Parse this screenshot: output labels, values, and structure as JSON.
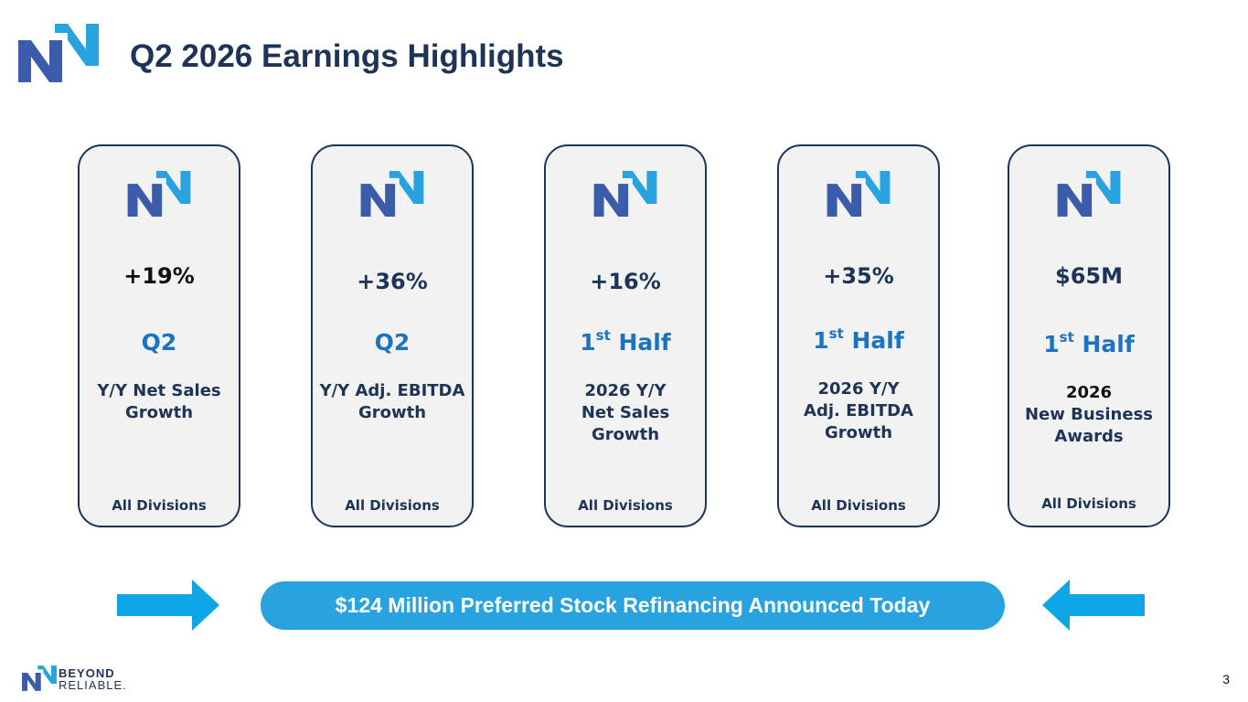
{
  "header": {
    "title": "Q2 2026 Earnings Highlights"
  },
  "cards": [
    {
      "metric": "+19%",
      "period_main": "Q2",
      "period_sup": "",
      "desc_lines": [
        "Y/Y Net Sales",
        "Growth",
        ""
      ],
      "scope": "All Divisions"
    },
    {
      "metric": "+36%",
      "period_main": "Q2",
      "period_sup": "",
      "desc_lines": [
        "Y/Y Adj. EBITDA",
        "Growth",
        ""
      ],
      "scope": "All Divisions"
    },
    {
      "metric": "+16%",
      "period_main": "1",
      "period_sup": "st",
      "period_suffix": " Half",
      "desc_lines": [
        "2026 Y/Y",
        "Net Sales",
        "Growth"
      ],
      "scope": "All Divisions"
    },
    {
      "metric": "+35%",
      "period_main": "1",
      "period_sup": "st",
      "period_suffix": " Half",
      "desc_lines": [
        "2026 Y/Y",
        "Adj. EBITDA",
        "Growth"
      ],
      "scope": "All Divisions"
    },
    {
      "metric": "$65M",
      "period_main": "1",
      "period_sup": "st",
      "period_suffix": " Half",
      "desc_lines": [
        "2026",
        "New Business",
        "Awards"
      ],
      "scope": "All Divisions"
    }
  ],
  "banner": {
    "text": "$124 Million Preferred Stock Refinancing Announced Today"
  },
  "footer": {
    "brand_line1": "BEYOND",
    "brand_line2": "RELIABLE.",
    "page_number": "3"
  },
  "colors": {
    "navy": "#1e3456",
    "brand_blue": "#3b5bab",
    "light_blue": "#29a3e0",
    "period_blue": "#1b73c1"
  },
  "icons": {
    "logo": "logo-icon",
    "arrow_right": "arrow-right-icon",
    "arrow_left": "arrow-left-icon"
  }
}
